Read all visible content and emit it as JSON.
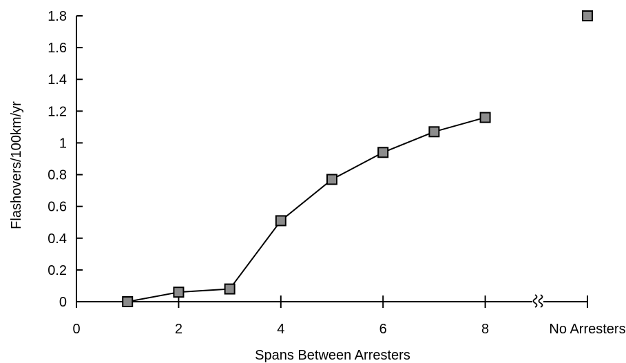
{
  "chart_data": {
    "type": "line",
    "title": "",
    "xlabel": "Spans Between Arresters",
    "ylabel": "Flashovers/100km/yr",
    "xlim": [
      0,
      10
    ],
    "ylim": [
      0,
      1.8
    ],
    "grid": false,
    "legend": "none",
    "x_tick_labels": [
      "0",
      "2",
      "4",
      "6",
      "8",
      "No Arresters"
    ],
    "x_tick_values": [
      0,
      2,
      4,
      6,
      8,
      10
    ],
    "y_tick_labels": [
      "0",
      "0.2",
      "0.4",
      "0.6",
      "0.8",
      "1",
      "1.2",
      "1.4",
      "1.6",
      "1.8"
    ],
    "y_tick_values": [
      0,
      0.2,
      0.4,
      0.6,
      0.8,
      1.0,
      1.2,
      1.4,
      1.6,
      1.8
    ],
    "axis_break_between": [
      8,
      10
    ],
    "series": [
      {
        "x": [
          1,
          2,
          3,
          4,
          5,
          6,
          7,
          8
        ],
        "values": [
          0,
          0.06,
          0.08,
          0.51,
          0.77,
          0.94,
          1.07,
          1.16
        ],
        "connected": true
      },
      {
        "x": [
          10
        ],
        "values": [
          1.8
        ],
        "connected": false
      }
    ],
    "colors": {
      "marker_fill": "#8c8c8c",
      "marker_stroke": "#000000",
      "line": "#000000",
      "axis": "#000000"
    }
  }
}
